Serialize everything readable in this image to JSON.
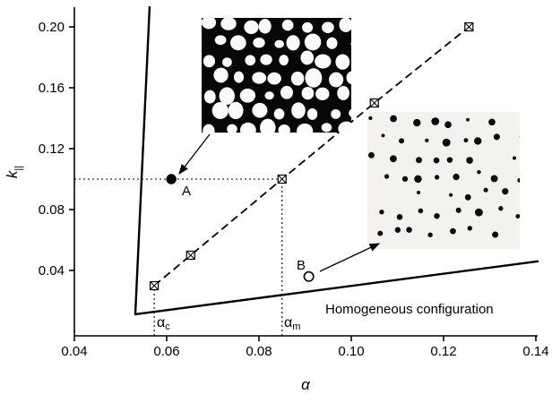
{
  "chart_data": {
    "type": "line",
    "title": "",
    "xlabel": "α",
    "ylabel_base": "k",
    "ylabel_sub": "||",
    "xlim": [
      0.04,
      0.14
    ],
    "ylim": [
      0.0,
      0.213
    ],
    "grid": false,
    "legend": "none",
    "xticks": [
      0.04,
      0.06,
      0.08,
      0.1,
      0.12,
      0.14
    ],
    "xtick_labels": [
      "0.04",
      "0.06",
      "0.08",
      "0.10",
      "0.12",
      "0.14"
    ],
    "yticks": [
      0.04,
      0.08,
      0.12,
      0.16,
      0.2
    ],
    "ytick_labels": [
      "0.04",
      "0.08",
      "0.12",
      "0.16",
      "0.20"
    ],
    "series": [
      {
        "name": "steep-instability-boundary",
        "style": "solid",
        "marker": "none",
        "x": [
          0.0532,
          0.0563
        ],
        "y": [
          0.0112,
          0.213
        ]
      },
      {
        "name": "homogeneous-boundary",
        "style": "solid",
        "marker": "none",
        "x": [
          0.0532,
          0.1404
        ],
        "y": [
          0.0112,
          0.046
        ]
      },
      {
        "name": "modulated-branch",
        "style": "dashed",
        "marker": "square-x",
        "x": [
          0.0573,
          0.0652,
          0.085,
          0.105,
          0.1255
        ],
        "y": [
          0.03,
          0.05,
          0.1,
          0.15,
          0.2
        ]
      }
    ],
    "points": [
      {
        "label": "A",
        "x": 0.061,
        "y": 0.1,
        "marker": "filled-circle"
      },
      {
        "label": "B",
        "x": 0.0908,
        "y": 0.036,
        "marker": "open-circle"
      }
    ],
    "guides": [
      {
        "type": "h-dotted",
        "k": 0.1,
        "x_from": 0.04,
        "x_to": 0.085
      },
      {
        "type": "v-dotted",
        "alpha": 0.0573,
        "k_to": 0.03
      },
      {
        "type": "v-dotted",
        "alpha": 0.085,
        "k_to": 0.1
      }
    ],
    "annotations": {
      "alpha_c": {
        "base": "α",
        "sub": "c"
      },
      "alpha_m": {
        "base": "α",
        "sub": "m"
      },
      "homogeneous": "Homogeneous configuration"
    },
    "insets": [
      {
        "name": "inset-white-blobs-on-black",
        "description": "microscopy pattern: white droplet blobs on black background, linked to point A",
        "bg": "#070707",
        "dot_color": "#fbfbfb"
      },
      {
        "name": "inset-black-dots-on-light",
        "description": "microscopy pattern: sparse black dots on light background, linked to point B",
        "bg": "#f3f2ef",
        "dot_color": "#0c0c0c"
      }
    ]
  }
}
